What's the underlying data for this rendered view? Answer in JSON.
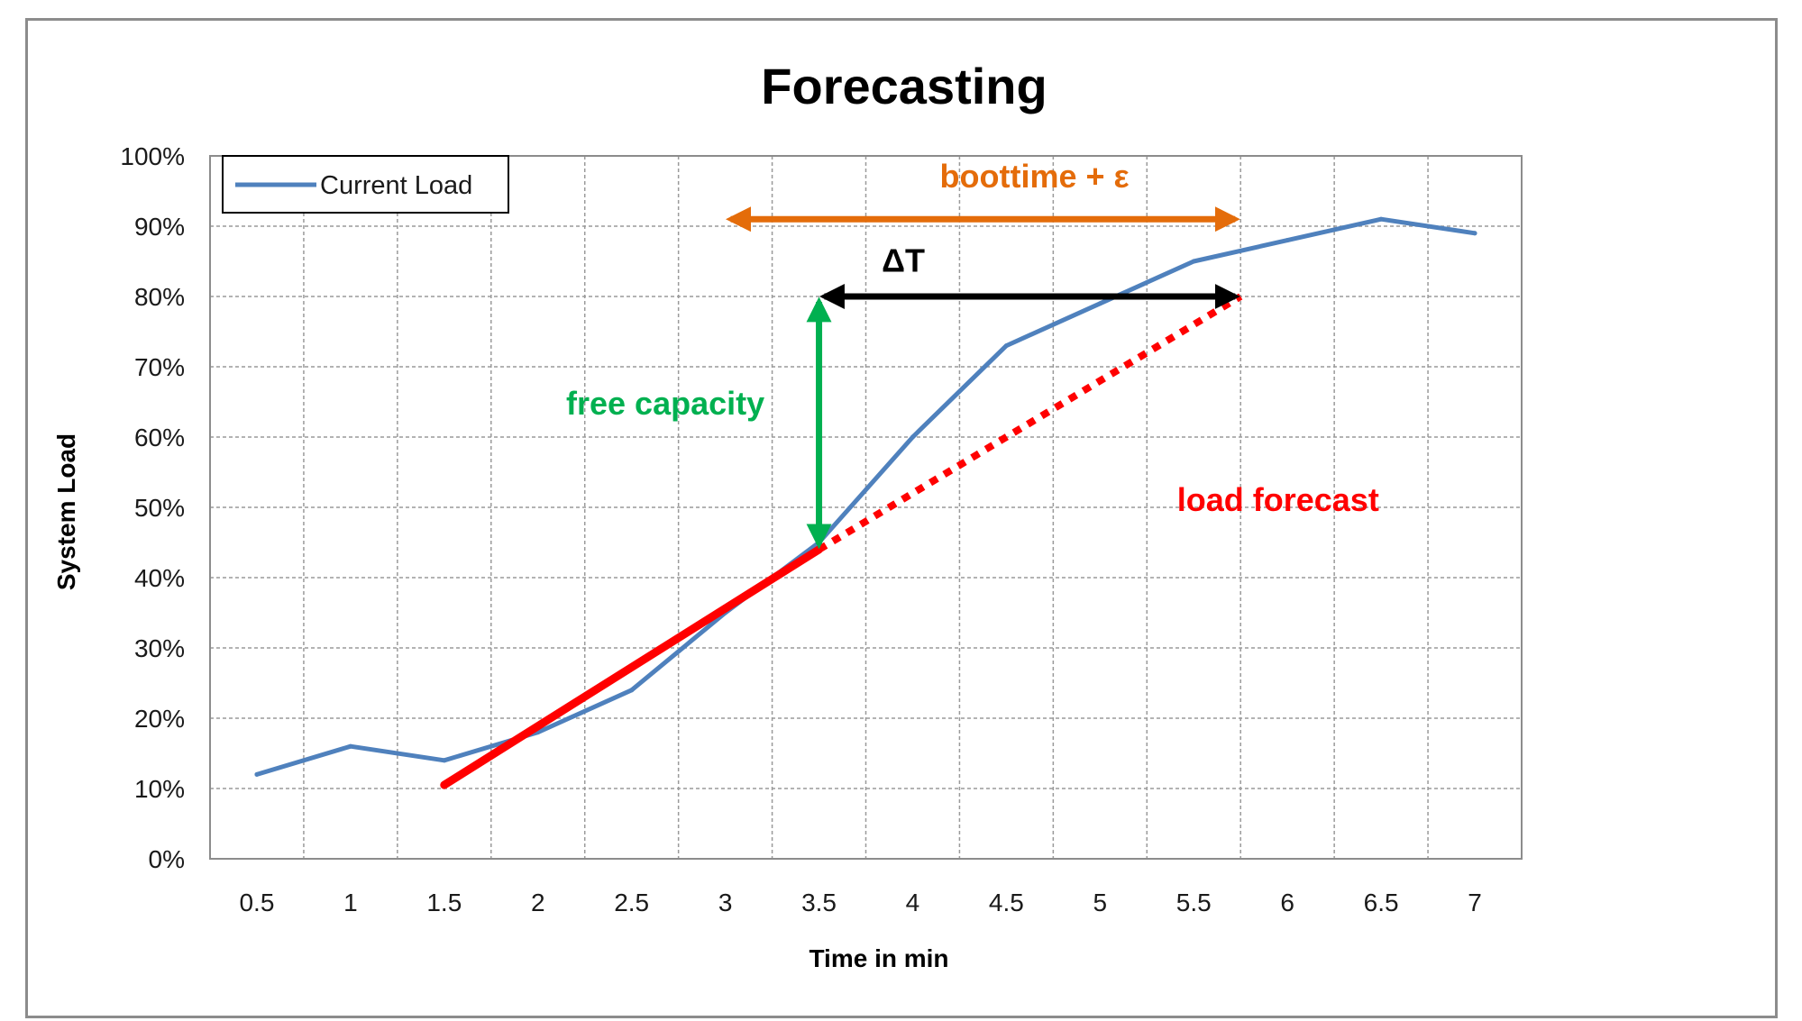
{
  "chart_data": {
    "type": "line",
    "title": "Forecasting",
    "xlabel": "Time in min",
    "ylabel": "System Load",
    "x": [
      0.5,
      1,
      1.5,
      2,
      2.5,
      3,
      3.5,
      4,
      4.5,
      5,
      5.5,
      6,
      6.5,
      7
    ],
    "x_tick_labels": [
      "0.5",
      "1",
      "1.5",
      "2",
      "2.5",
      "3",
      "3.5",
      "4",
      "4.5",
      "5",
      "5.5",
      "6",
      "6.5",
      "7"
    ],
    "y_tick_labels": [
      "0%",
      "10%",
      "20%",
      "30%",
      "40%",
      "50%",
      "60%",
      "70%",
      "80%",
      "90%",
      "100%"
    ],
    "ylim": [
      0,
      100
    ],
    "grid": true,
    "legend_position": "top-left",
    "series": [
      {
        "name": "Current Load",
        "color": "#4f81bd",
        "values": [
          12,
          16,
          14,
          18,
          24,
          35,
          45,
          60,
          73,
          79,
          85,
          88,
          91,
          89
        ]
      }
    ],
    "annotations": {
      "forecast_line": {
        "label": "load forecast",
        "color": "#ff0000",
        "solid": [
          [
            1.5,
            10.5
          ],
          [
            3.5,
            44
          ]
        ],
        "dotted": [
          [
            3.5,
            44
          ],
          [
            5.75,
            80
          ]
        ]
      },
      "free_capacity": {
        "label": "free capacity",
        "color": "#00b050",
        "x": 3.5,
        "from": 44,
        "to": 80
      },
      "delta_t": {
        "label": "ΔT",
        "color": "#000000",
        "y": 80,
        "from": 3.5,
        "to": 5.75
      },
      "boottime": {
        "label": "boottime + ε",
        "color": "#e46c0a",
        "y": 91,
        "from": 3.0,
        "to": 5.75
      }
    }
  }
}
